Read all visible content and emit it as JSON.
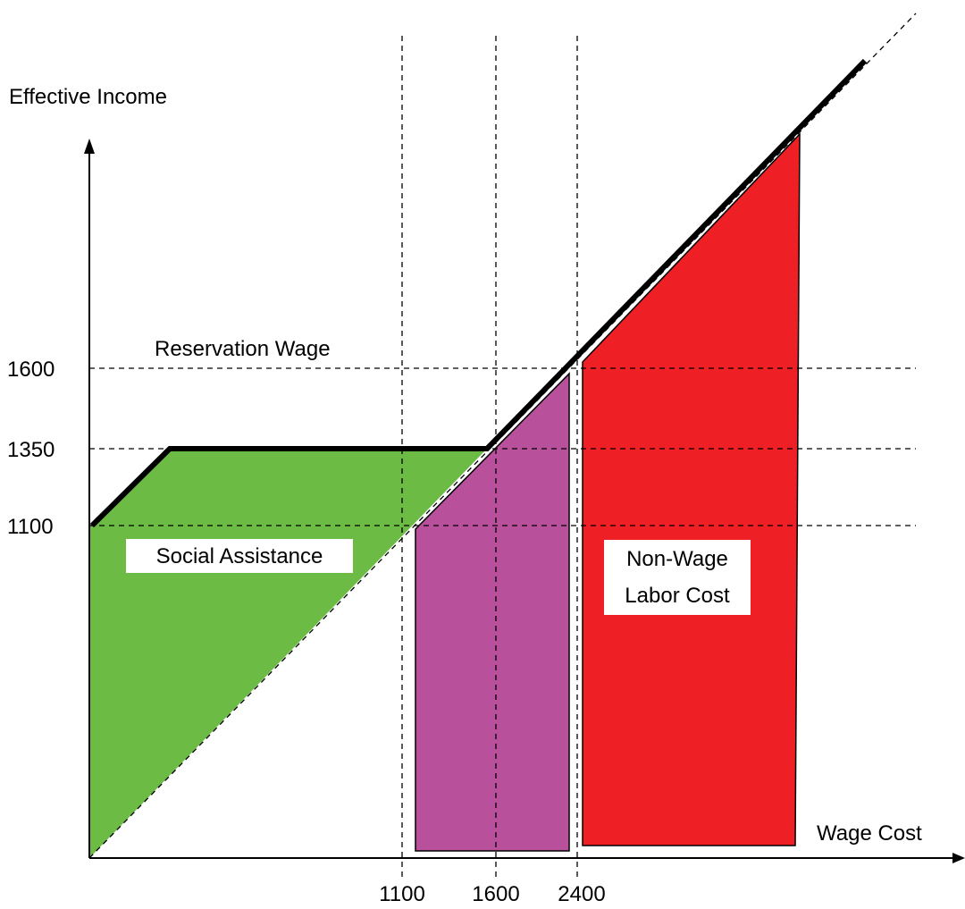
{
  "y_axis_label": "Effective Income",
  "x_axis_label": "Wage Cost",
  "reservation_wage_label": "Reservation Wage",
  "y_ticks": [
    1600,
    1350,
    1100
  ],
  "x_ticks": [
    1100,
    1600,
    2400
  ],
  "regions": [
    {
      "lines": [
        "Social Assistance"
      ]
    },
    {
      "lines": [
        "Non-Wage",
        "Labor Cost"
      ]
    }
  ]
}
